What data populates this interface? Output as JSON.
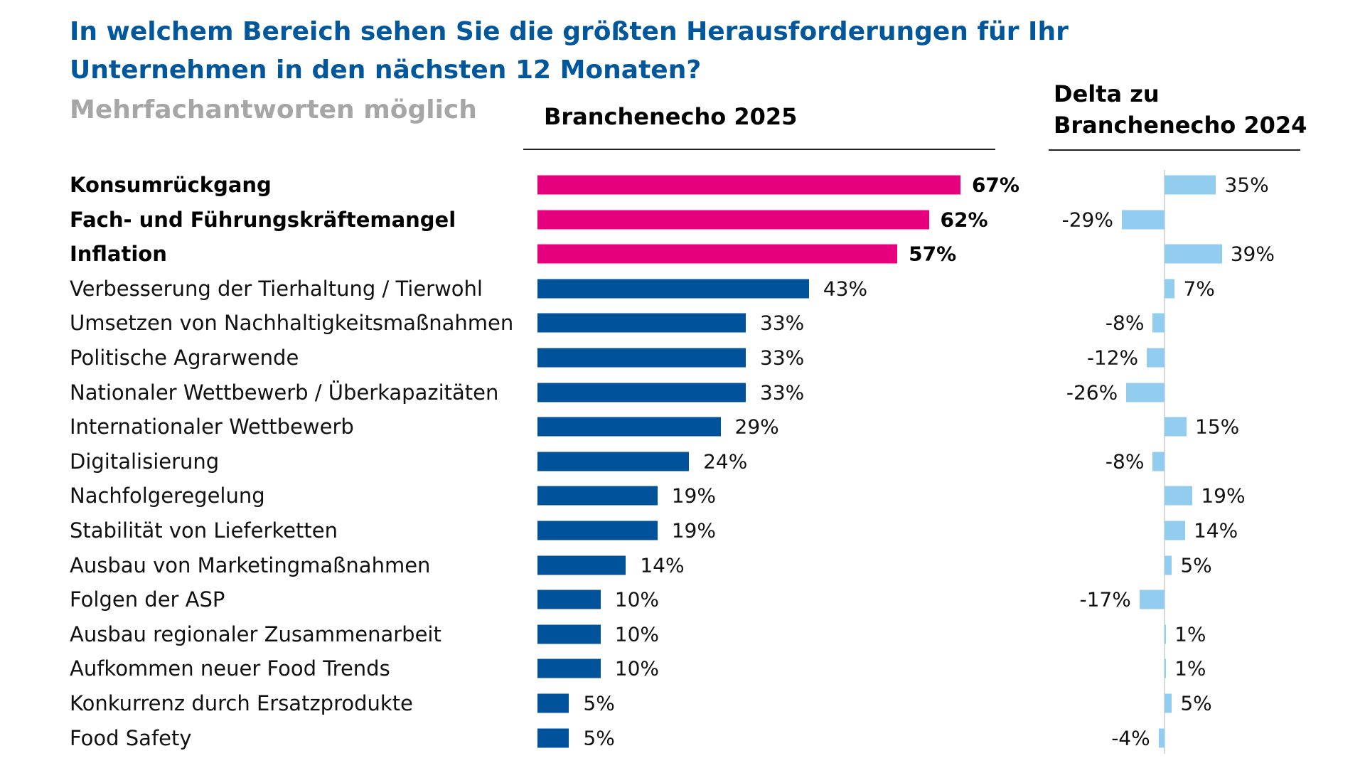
{
  "chart_data": [
    {
      "type": "bar",
      "orientation": "horizontal",
      "title": "In welchem Bereich sehen Sie die größten Herausforderungen für Ihr Unternehmen in den nächsten 12 Monaten?",
      "title_lines": [
        "In welchem Bereich sehen Sie die größten Herausforderungen für Ihr",
        "Unternehmen in den nächsten 12 Monaten?"
      ],
      "subtitle": "Mehrfachantworten möglich",
      "series_header": "Branchenecho 2025",
      "categories": [
        "Konsumrückgang",
        "Fach- und Führungskräftemangel",
        "Inflation",
        "Verbesserung der Tierhaltung / Tierwohl",
        "Umsetzen von Nachhaltigkeitsmaßnahmen",
        "Politische Agrarwende",
        "Nationaler Wettbewerb / Überkapazitäten",
        "Internationaler Wettbewerb",
        "Digitalisierung",
        "Nachfolgeregelung",
        "Stabilität von Lieferketten",
        "Ausbau von Marketingmaßnahmen",
        "Folgen der ASP",
        "Ausbau regionaler Zusammenarbeit",
        "Aufkommen neuer Food Trends",
        "Konkurrenz durch Ersatzprodukte",
        "Food Safety"
      ],
      "values": [
        67,
        62,
        57,
        43,
        33,
        33,
        33,
        29,
        24,
        19,
        19,
        14,
        10,
        10,
        10,
        5,
        5
      ],
      "data_labels": [
        "67%",
        "62%",
        "57%",
        "43%",
        "33%",
        "33%",
        "33%",
        "29%",
        "24%",
        "19%",
        "19%",
        "14%",
        "10%",
        "10%",
        "10%",
        "5%",
        "5%"
      ],
      "highlighted": [
        true,
        true,
        true,
        false,
        false,
        false,
        false,
        false,
        false,
        false,
        false,
        false,
        false,
        false,
        false,
        false,
        false
      ],
      "unit": "%",
      "colors": {
        "highlight": "#e6007e",
        "default": "#00529b"
      }
    },
    {
      "type": "bar",
      "orientation": "horizontal",
      "header_lines": [
        "Delta zu",
        "Branchenecho 2024"
      ],
      "values": [
        35,
        -29,
        39,
        7,
        -8,
        -12,
        -26,
        15,
        -8,
        19,
        14,
        5,
        -17,
        1,
        1,
        5,
        -4
      ],
      "data_labels": [
        "35%",
        "-29%",
        "39%",
        "7%",
        "-8%",
        "-12%",
        "-26%",
        "15%",
        "-8%",
        "19%",
        "14%",
        "5%",
        "-17%",
        "1%",
        "1%",
        "5%",
        "-4%"
      ],
      "unit": "%",
      "colors": {
        "bar": "#92cdef",
        "axis": "#d9d9d9"
      }
    }
  ],
  "colors": {
    "title": "#00579c",
    "subtitle": "#a6a6a6"
  }
}
